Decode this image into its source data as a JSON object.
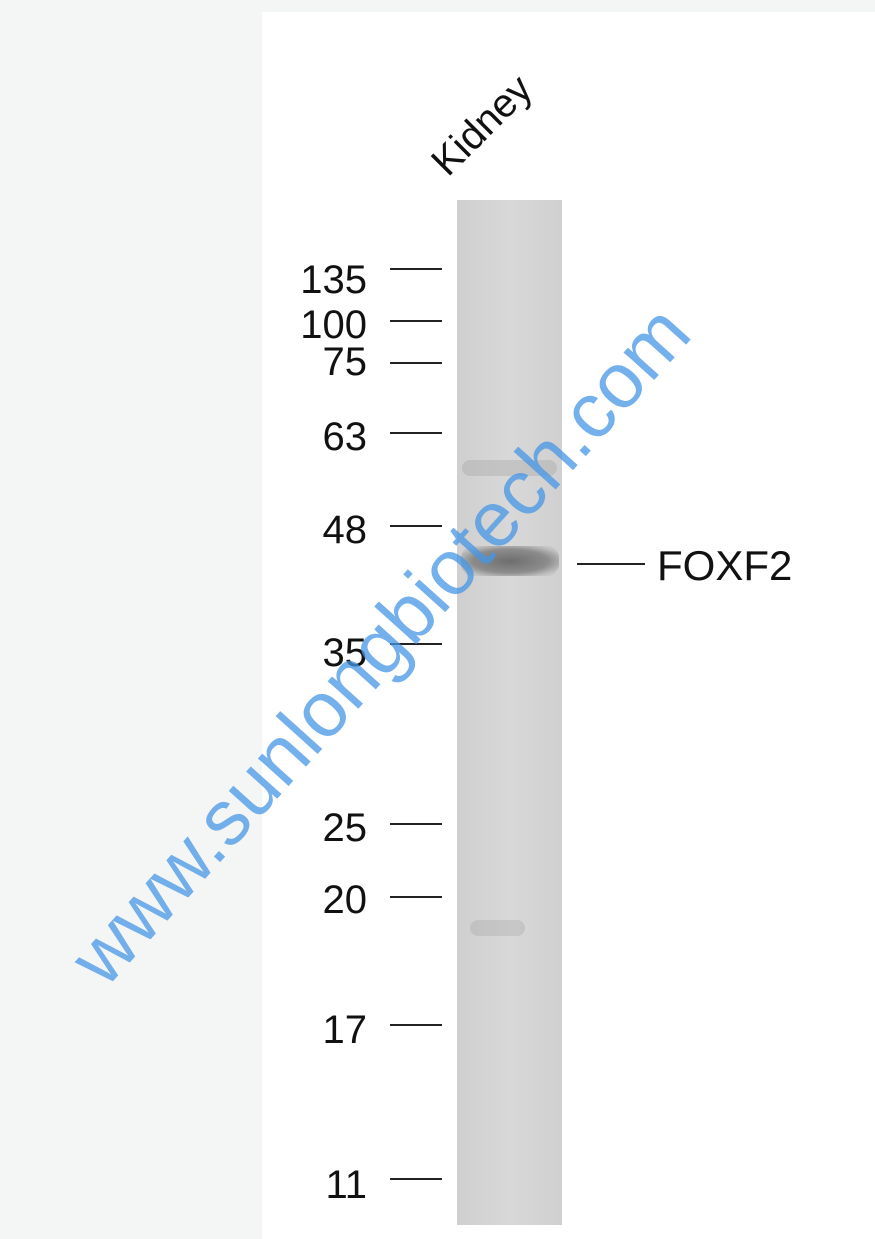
{
  "lane_label": "Kidney",
  "band_label": "FOXF2",
  "markers": [
    "135",
    "100",
    "75",
    "63",
    "48",
    "35",
    "25",
    "20",
    "17",
    "11"
  ],
  "watermark": "www.sunlongbiotech.com"
}
